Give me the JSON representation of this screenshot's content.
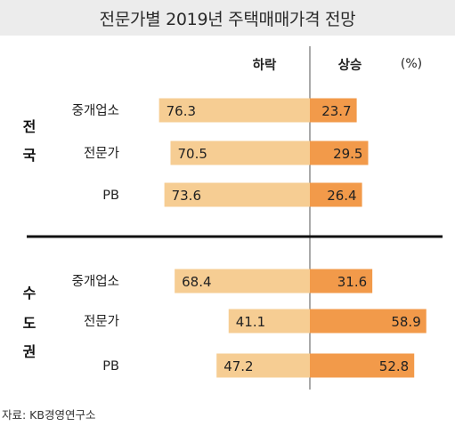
{
  "title": "전문가별 2019년 주택매매가격 전망",
  "source": "자료: KB경영연구소",
  "chart_data": {
    "type": "bar",
    "title": "전문가별 2019년 주택매매가격 전망",
    "legend": {
      "fall": "하락",
      "rise": "상승"
    },
    "unit": "(%)",
    "groups": [
      {
        "name": "전국",
        "categories": [
          "중개업소",
          "전문가",
          "PB"
        ],
        "series": [
          {
            "name": "하락",
            "values": [
              76.3,
              70.5,
              73.6
            ]
          },
          {
            "name": "상승",
            "values": [
              23.7,
              29.5,
              26.4
            ]
          }
        ]
      },
      {
        "name": "수도권",
        "categories": [
          "중개업소",
          "전문가",
          "PB"
        ],
        "series": [
          {
            "name": "하락",
            "values": [
              68.4,
              41.1,
              47.2
            ]
          },
          {
            "name": "상승",
            "values": [
              31.6,
              58.9,
              52.8
            ]
          }
        ]
      }
    ],
    "colors": {
      "fall": "#f6cd93",
      "rise": "#f29a4a"
    }
  }
}
